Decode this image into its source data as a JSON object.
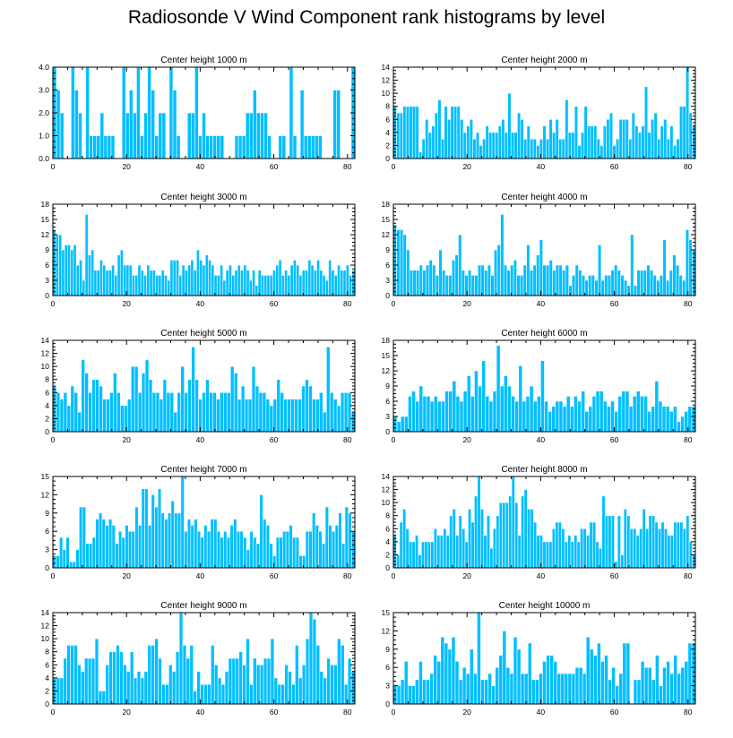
{
  "title": "Radiosonde V Wind Component rank histograms by level",
  "chart_data": [
    {
      "type": "bar",
      "title": "Center height 1000 m",
      "x_start": 0,
      "xlim": [
        0,
        82
      ],
      "ylim": [
        0,
        4
      ],
      "xticks": [
        0,
        20,
        40,
        60,
        80
      ],
      "yticks": [
        0,
        1,
        2,
        3,
        4
      ],
      "ytick_labels": [
        "0.0",
        "1.0",
        "2.0",
        "3.0",
        "4.0"
      ],
      "values": [
        4,
        3,
        2,
        0,
        0,
        4,
        3,
        2,
        0,
        4,
        1,
        1,
        1,
        2,
        1,
        1,
        1,
        0,
        0,
        4,
        2,
        3,
        2,
        4,
        1,
        2,
        4,
        3,
        1,
        2,
        2,
        0,
        4,
        3,
        1,
        0,
        0,
        2,
        2,
        4,
        1,
        2,
        1,
        1,
        1,
        1,
        1,
        0,
        0,
        0,
        1,
        1,
        1,
        2,
        2,
        3,
        2,
        2,
        2,
        1,
        0,
        0,
        1,
        1,
        0,
        4,
        1,
        0,
        3,
        1,
        1,
        1,
        1,
        1,
        0,
        0,
        0,
        3,
        3,
        0,
        0,
        0,
        4
      ]
    },
    {
      "type": "bar",
      "title": "Center height 2000 m",
      "x_start": 0,
      "xlim": [
        0,
        82
      ],
      "ylim": [
        0,
        14
      ],
      "xticks": [
        0,
        20,
        40,
        60,
        80
      ],
      "yticks": [
        0,
        2,
        4,
        6,
        8,
        10,
        12,
        14
      ],
      "ytick_labels": [
        "0",
        "2",
        "4",
        "6",
        "8",
        "10",
        "12",
        "14"
      ],
      "values": [
        8,
        7,
        7,
        8,
        8,
        8,
        8,
        8,
        1,
        3,
        6,
        4,
        5,
        7,
        9,
        3,
        8,
        6,
        8,
        8,
        8,
        6,
        4,
        5,
        6,
        3,
        4,
        2,
        3,
        5,
        4,
        4,
        4,
        5,
        6,
        4,
        10,
        4,
        4,
        7,
        6,
        3,
        5,
        3,
        3,
        2,
        3,
        5,
        3,
        6,
        4,
        6,
        3,
        3,
        9,
        4,
        4,
        8,
        2,
        4,
        8,
        5,
        5,
        5,
        3,
        2,
        5,
        6,
        7,
        2,
        3,
        6,
        6,
        6,
        3,
        7,
        5,
        4,
        5,
        11,
        4,
        6,
        7,
        3,
        5,
        6,
        3,
        5,
        2,
        3,
        8,
        8,
        14,
        7,
        5
      ]
    },
    {
      "type": "bar",
      "title": "Center height 3000 m",
      "x_start": 0,
      "xlim": [
        0,
        82
      ],
      "ylim": [
        0,
        18
      ],
      "xticks": [
        0,
        20,
        40,
        60,
        80
      ],
      "yticks": [
        0,
        3,
        6,
        9,
        12,
        15,
        18
      ],
      "ytick_labels": [
        "0",
        "3",
        "6",
        "9",
        "12",
        "15",
        "18"
      ],
      "values": [
        13,
        12,
        12,
        9,
        10,
        10,
        9,
        10,
        6,
        7,
        3,
        16,
        8,
        9,
        5,
        5,
        7,
        6,
        5,
        5,
        6,
        4,
        8,
        9,
        6,
        6,
        6,
        4,
        4,
        6,
        5,
        4,
        6,
        5,
        5,
        4,
        4,
        5,
        4,
        3,
        7,
        7,
        7,
        4,
        6,
        5,
        6,
        7,
        5,
        9,
        7,
        6,
        8,
        7,
        6,
        4,
        4,
        6,
        3,
        5,
        6,
        4,
        5,
        6,
        5,
        6,
        5,
        3,
        5,
        2,
        5,
        4,
        4,
        4,
        4,
        5,
        6,
        7,
        4,
        5,
        4,
        6,
        7,
        6,
        4,
        5,
        5,
        7,
        6,
        5,
        7,
        5,
        4,
        3,
        7,
        5,
        4,
        6,
        5,
        5,
        6,
        4,
        5
      ]
    },
    {
      "type": "bar",
      "title": "Center height 4000 m",
      "x_start": 0,
      "xlim": [
        0,
        82
      ],
      "ylim": [
        0,
        18
      ],
      "xticks": [
        0,
        20,
        40,
        60,
        80
      ],
      "yticks": [
        0,
        3,
        6,
        9,
        12,
        15,
        18
      ],
      "ytick_labels": [
        "0",
        "3",
        "6",
        "9",
        "12",
        "15",
        "18"
      ],
      "values": [
        14,
        13,
        13,
        12,
        9,
        5,
        5,
        5,
        6,
        5,
        6,
        7,
        6,
        4,
        9,
        5,
        4,
        4,
        7,
        8,
        12,
        5,
        4,
        5,
        4,
        4,
        6,
        6,
        5,
        6,
        4,
        9,
        10,
        16,
        6,
        5,
        6,
        7,
        4,
        4,
        6,
        10,
        5,
        6,
        8,
        11,
        6,
        6,
        7,
        5,
        6,
        6,
        5,
        6,
        2,
        4,
        6,
        5,
        4,
        3,
        4,
        4,
        3,
        10,
        3,
        4,
        4,
        5,
        6,
        5,
        4,
        3,
        2,
        12,
        2,
        5,
        5,
        5,
        6,
        5,
        4,
        3,
        4,
        11,
        3,
        5,
        8,
        6,
        4,
        3,
        13,
        11,
        9
      ]
    },
    {
      "type": "bar",
      "title": "Center height 5000 m",
      "x_start": 0,
      "xlim": [
        0,
        82
      ],
      "ylim": [
        0,
        14
      ],
      "xticks": [
        0,
        20,
        40,
        60,
        80
      ],
      "yticks": [
        0,
        2,
        4,
        6,
        8,
        10,
        12,
        14
      ],
      "ytick_labels": [
        "0",
        "2",
        "4",
        "6",
        "8",
        "10",
        "12",
        "14"
      ],
      "values": [
        7,
        6,
        5,
        6,
        4,
        7,
        6,
        3,
        11,
        9,
        6,
        8,
        8,
        7,
        5,
        5,
        6,
        9,
        6,
        4,
        4,
        5,
        10,
        10,
        6,
        9,
        11,
        8,
        6,
        6,
        5,
        8,
        6,
        6,
        3,
        6,
        10,
        6,
        8,
        13,
        8,
        5,
        6,
        8,
        6,
        6,
        5,
        6,
        6,
        6,
        10,
        9,
        5,
        7,
        5,
        5,
        10,
        7,
        6,
        6,
        5,
        4,
        5,
        8,
        6,
        5,
        5,
        5,
        5,
        5,
        7,
        8,
        7,
        5,
        5,
        6,
        3,
        13,
        6,
        5,
        4,
        6,
        6,
        6,
        3
      ]
    },
    {
      "type": "bar",
      "title": "Center height 6000 m",
      "x_start": 0,
      "xlim": [
        0,
        82
      ],
      "ylim": [
        0,
        18
      ],
      "xticks": [
        0,
        20,
        40,
        60,
        80
      ],
      "yticks": [
        0,
        3,
        6,
        9,
        12,
        15,
        18
      ],
      "ytick_labels": [
        "0",
        "3",
        "6",
        "9",
        "12",
        "15",
        "18"
      ],
      "values": [
        3,
        2,
        3,
        3,
        7,
        8,
        6,
        9,
        7,
        7,
        6,
        7,
        6,
        6,
        8,
        8,
        10,
        7,
        6,
        8,
        11,
        7,
        12,
        9,
        14,
        7,
        6,
        8,
        17,
        9,
        11,
        9,
        7,
        6,
        13,
        6,
        7,
        9,
        6,
        7,
        14,
        6,
        4,
        5,
        6,
        6,
        5,
        7,
        5,
        7,
        6,
        8,
        4,
        5,
        7,
        8,
        8,
        6,
        5,
        6,
        4,
        7,
        8,
        8,
        5,
        7,
        8,
        7,
        7,
        4,
        5,
        10,
        6,
        5,
        5,
        4,
        5,
        2,
        3,
        4,
        5,
        5
      ]
    },
    {
      "type": "bar",
      "title": "Center height 7000 m",
      "x_start": 0,
      "xlim": [
        0,
        82
      ],
      "ylim": [
        0,
        15
      ],
      "xticks": [
        0,
        20,
        40,
        60,
        80
      ],
      "yticks": [
        0,
        3,
        6,
        9,
        12,
        15
      ],
      "ytick_labels": [
        "0",
        "3",
        "6",
        "9",
        "12",
        "15"
      ],
      "values": [
        2,
        2,
        5,
        3,
        5,
        1,
        1,
        3,
        10,
        10,
        4,
        4,
        5,
        8,
        9,
        8,
        7,
        8,
        7,
        4,
        6,
        5,
        7,
        6,
        6,
        10,
        7,
        13,
        13,
        7,
        12,
        10,
        13,
        9,
        8,
        9,
        11,
        9,
        9,
        15,
        6,
        8,
        7,
        8,
        6,
        5,
        7,
        6,
        8,
        8,
        6,
        5,
        6,
        5,
        7,
        8,
        6,
        6,
        5,
        3,
        6,
        5,
        4,
        12,
        8,
        7,
        4,
        2,
        5,
        5,
        6,
        6,
        7,
        5,
        5,
        2,
        2,
        6,
        6,
        9,
        7,
        6,
        4,
        10,
        7,
        6,
        7,
        9,
        4,
        10,
        9,
        6
      ]
    },
    {
      "type": "bar",
      "title": "Center height 8000 m",
      "x_start": 0,
      "xlim": [
        0,
        82
      ],
      "ylim": [
        0,
        14
      ],
      "xticks": [
        0,
        20,
        40,
        60,
        80
      ],
      "yticks": [
        0,
        2,
        4,
        6,
        8,
        10,
        12,
        14
      ],
      "ytick_labels": [
        "0",
        "2",
        "4",
        "6",
        "8",
        "10",
        "12",
        "14"
      ],
      "values": [
        5,
        2,
        7,
        9,
        6,
        4,
        4,
        5,
        2,
        4,
        4,
        4,
        4,
        6,
        5,
        5,
        6,
        5,
        8,
        9,
        5,
        8,
        6,
        4,
        9,
        7,
        11,
        14,
        9,
        5,
        8,
        3,
        6,
        8,
        10,
        10,
        10,
        11,
        14,
        10,
        5,
        11,
        12,
        9,
        9,
        7,
        5,
        5,
        4,
        4,
        4,
        6,
        7,
        7,
        6,
        4,
        5,
        4,
        5,
        4,
        6,
        6,
        5,
        7,
        7,
        4,
        3,
        11,
        8,
        8,
        8,
        1,
        8,
        2,
        9,
        8,
        6,
        6,
        5,
        6,
        9,
        6,
        8,
        8,
        7,
        6,
        7,
        6,
        5,
        5,
        7,
        7,
        7,
        6,
        8,
        4,
        2
      ]
    },
    {
      "type": "bar",
      "title": "Center height 9000 m",
      "x_start": 0,
      "xlim": [
        0,
        82
      ],
      "ylim": [
        0,
        14
      ],
      "xticks": [
        0,
        20,
        40,
        60,
        80
      ],
      "yticks": [
        0,
        2,
        4,
        6,
        8,
        10,
        12,
        14
      ],
      "ytick_labels": [
        "0",
        "2",
        "4",
        "6",
        "8",
        "10",
        "12",
        "14"
      ],
      "values": [
        4,
        4,
        4,
        7,
        9,
        9,
        9,
        6,
        5,
        7,
        7,
        7,
        10,
        2,
        2,
        6,
        8,
        8,
        9,
        8,
        6,
        5,
        8,
        4,
        5,
        4,
        5,
        9,
        9,
        10,
        7,
        3,
        3,
        6,
        5,
        8,
        14,
        9,
        7,
        9,
        2,
        5,
        3,
        3,
        3,
        9,
        6,
        4,
        3,
        5,
        7,
        7,
        7,
        8,
        6,
        10,
        3,
        7,
        6,
        6,
        7,
        7,
        10,
        4,
        3,
        3,
        6,
        5,
        3,
        9,
        4,
        6,
        10,
        14,
        13,
        9,
        5,
        4,
        7,
        6,
        6,
        10,
        9,
        3,
        7,
        5
      ]
    },
    {
      "type": "bar",
      "title": "Center height 10000 m",
      "x_start": 0,
      "xlim": [
        0,
        82
      ],
      "ylim": [
        0,
        15
      ],
      "xticks": [
        0,
        20,
        40,
        60,
        80
      ],
      "yticks": [
        0,
        3,
        6,
        9,
        12,
        15
      ],
      "ytick_labels": [
        "0",
        "3",
        "6",
        "9",
        "12",
        "15"
      ],
      "values": [
        3,
        3,
        4,
        7,
        3,
        3,
        4,
        7,
        4,
        4,
        5,
        8,
        7,
        11,
        10,
        9,
        11,
        7,
        4,
        6,
        5,
        9,
        5,
        15,
        4,
        4,
        5,
        3,
        6,
        8,
        12,
        6,
        5,
        11,
        9,
        5,
        5,
        10,
        4,
        4,
        5,
        7,
        8,
        8,
        7,
        5,
        5,
        5,
        5,
        5,
        6,
        6,
        5,
        11,
        9,
        8,
        10,
        7,
        8,
        4,
        6,
        3,
        5,
        10,
        10,
        0,
        4,
        4,
        7,
        6,
        6,
        4,
        8,
        3,
        6,
        7,
        5,
        8,
        5,
        6,
        7,
        10,
        10
      ]
    }
  ]
}
